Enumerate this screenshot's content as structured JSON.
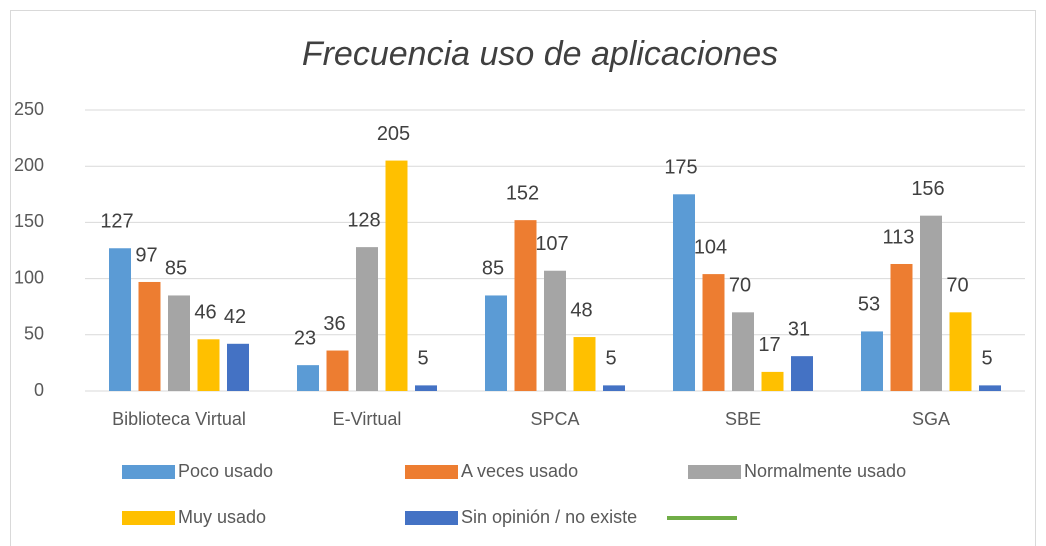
{
  "chart_data": {
    "type": "bar",
    "title": "Frecuencia uso de aplicaciones",
    "categories": [
      "Biblioteca Virtual",
      "E-Virtual",
      "SPCA",
      "SBE",
      "SGA"
    ],
    "series": [
      {
        "name": "Poco usado",
        "color": "#5b9bd5",
        "values": [
          127,
          23,
          85,
          175,
          53
        ]
      },
      {
        "name": "A veces usado",
        "color": "#ed7d31",
        "values": [
          97,
          36,
          152,
          104,
          113
        ]
      },
      {
        "name": "Normalmente usado",
        "color": "#a5a5a5",
        "values": [
          85,
          128,
          107,
          70,
          156
        ]
      },
      {
        "name": "Muy usado",
        "color": "#ffc000",
        "values": [
          46,
          205,
          48,
          17,
          70
        ]
      },
      {
        "name": "Sin opinión / no existe",
        "color": "#4472c4",
        "values": [
          42,
          5,
          5,
          31,
          5
        ]
      }
    ],
    "ylim": [
      0,
      250
    ],
    "yticks": [
      0,
      50,
      100,
      150,
      200,
      250
    ],
    "grid": true,
    "legend": "bottom"
  }
}
